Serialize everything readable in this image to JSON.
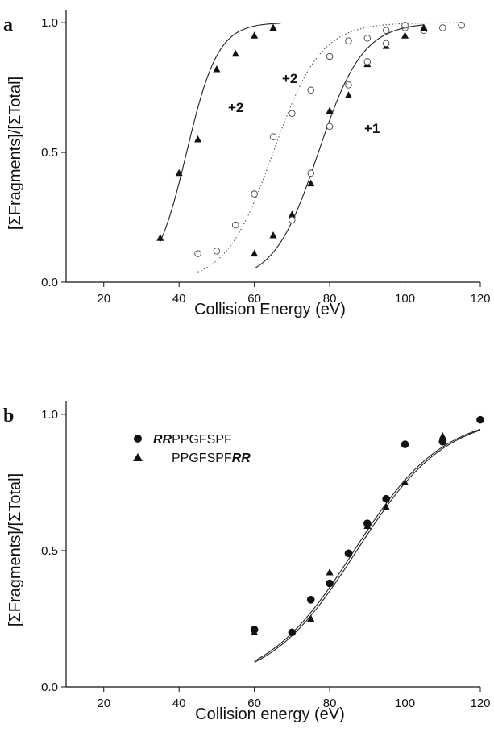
{
  "chart_data": [
    {
      "panel": "a",
      "type": "scatter",
      "xlabel": "Collision Energy (eV)",
      "ylabel": "[ΣFragments]/[ΣTotal]",
      "xlim": [
        10,
        120
      ],
      "ylim": [
        0,
        1.05
      ],
      "xticks": [
        20,
        40,
        60,
        80,
        100,
        120
      ],
      "yticks": [
        0.0,
        0.5,
        1.0
      ],
      "grid": false,
      "annotations": [
        "+2",
        "+2",
        "+1"
      ],
      "series": [
        {
          "marker": "filled-triangle",
          "line": "solid",
          "points": [
            [
              35,
              0.17
            ],
            [
              40,
              0.42
            ],
            [
              45,
              0.55
            ],
            [
              50,
              0.82
            ],
            [
              55,
              0.88
            ],
            [
              60,
              0.95
            ],
            [
              65,
              0.98
            ]
          ],
          "fit": {
            "x0": 42,
            "k": 0.24,
            "from": 35,
            "to": 67
          }
        },
        {
          "marker": "open-circle",
          "line": "dotted",
          "points": [
            [
              45,
              0.11
            ],
            [
              50,
              0.12
            ],
            [
              55,
              0.22
            ],
            [
              60,
              0.34
            ],
            [
              65,
              0.56
            ],
            [
              70,
              0.65
            ],
            [
              75,
              0.74
            ],
            [
              80,
              0.87
            ],
            [
              85,
              0.93
            ],
            [
              90,
              0.94
            ],
            [
              95,
              0.97
            ],
            [
              100,
              0.98
            ],
            [
              105,
              0.97
            ],
            [
              110,
              0.98
            ],
            [
              115,
              0.99
            ]
          ],
          "fit": {
            "x0": 65,
            "k": 0.16,
            "from": 45,
            "to": 115
          }
        },
        {
          "marker": "filled-triangle",
          "line": "solid",
          "points": [
            [
              60,
              0.11
            ],
            [
              65,
              0.18
            ],
            [
              70,
              0.26
            ],
            [
              75,
              0.38
            ],
            [
              80,
              0.66
            ],
            [
              85,
              0.72
            ],
            [
              90,
              0.84
            ],
            [
              95,
              0.91
            ],
            [
              100,
              0.95
            ],
            [
              105,
              0.98
            ]
          ],
          "fit": {
            "x0": 77,
            "k": 0.17,
            "from": 60,
            "to": 105
          }
        },
        {
          "marker": "open-circle",
          "line": "none",
          "points": [
            [
              70,
              0.24
            ],
            [
              75,
              0.42
            ],
            [
              80,
              0.6
            ],
            [
              85,
              0.76
            ],
            [
              90,
              0.85
            ],
            [
              95,
              0.92
            ],
            [
              100,
              0.99
            ]
          ]
        }
      ]
    },
    {
      "panel": "b",
      "type": "scatter",
      "xlabel": "Collision energy (eV)",
      "ylabel": "[ΣFragments]/[ΣTotal]",
      "xlim": [
        10,
        120
      ],
      "ylim": [
        0,
        1.05
      ],
      "xticks": [
        20,
        40,
        60,
        80,
        100,
        120
      ],
      "yticks": [
        0.0,
        0.5,
        1.0
      ],
      "grid": false,
      "legend_placement": "top-left",
      "series": [
        {
          "name_bold": "RR",
          "name_rest": "PPGFSPF",
          "marker": "filled-circle",
          "points": [
            [
              60,
              0.21
            ],
            [
              70,
              0.2
            ],
            [
              75,
              0.32
            ],
            [
              80,
              0.38
            ],
            [
              85,
              0.49
            ],
            [
              90,
              0.6
            ],
            [
              95,
              0.69
            ],
            [
              100,
              0.89
            ],
            [
              110,
              0.9
            ],
            [
              120,
              0.98
            ]
          ],
          "fit": {
            "x0": 86.5,
            "k": 0.085,
            "from": 60,
            "to": 120
          }
        },
        {
          "name_rest": "PPGFSPF",
          "name_bold": "RR",
          "marker": "filled-triangle",
          "points": [
            [
              60,
              0.2
            ],
            [
              70,
              0.2
            ],
            [
              75,
              0.25
            ],
            [
              80,
              0.42
            ],
            [
              85,
              0.49
            ],
            [
              90,
              0.59
            ],
            [
              95,
              0.66
            ],
            [
              100,
              0.75
            ],
            [
              110,
              0.92
            ],
            [
              120,
              0.98
            ]
          ],
          "fit": {
            "x0": 87.2,
            "k": 0.085,
            "from": 60,
            "to": 120
          }
        }
      ]
    }
  ]
}
